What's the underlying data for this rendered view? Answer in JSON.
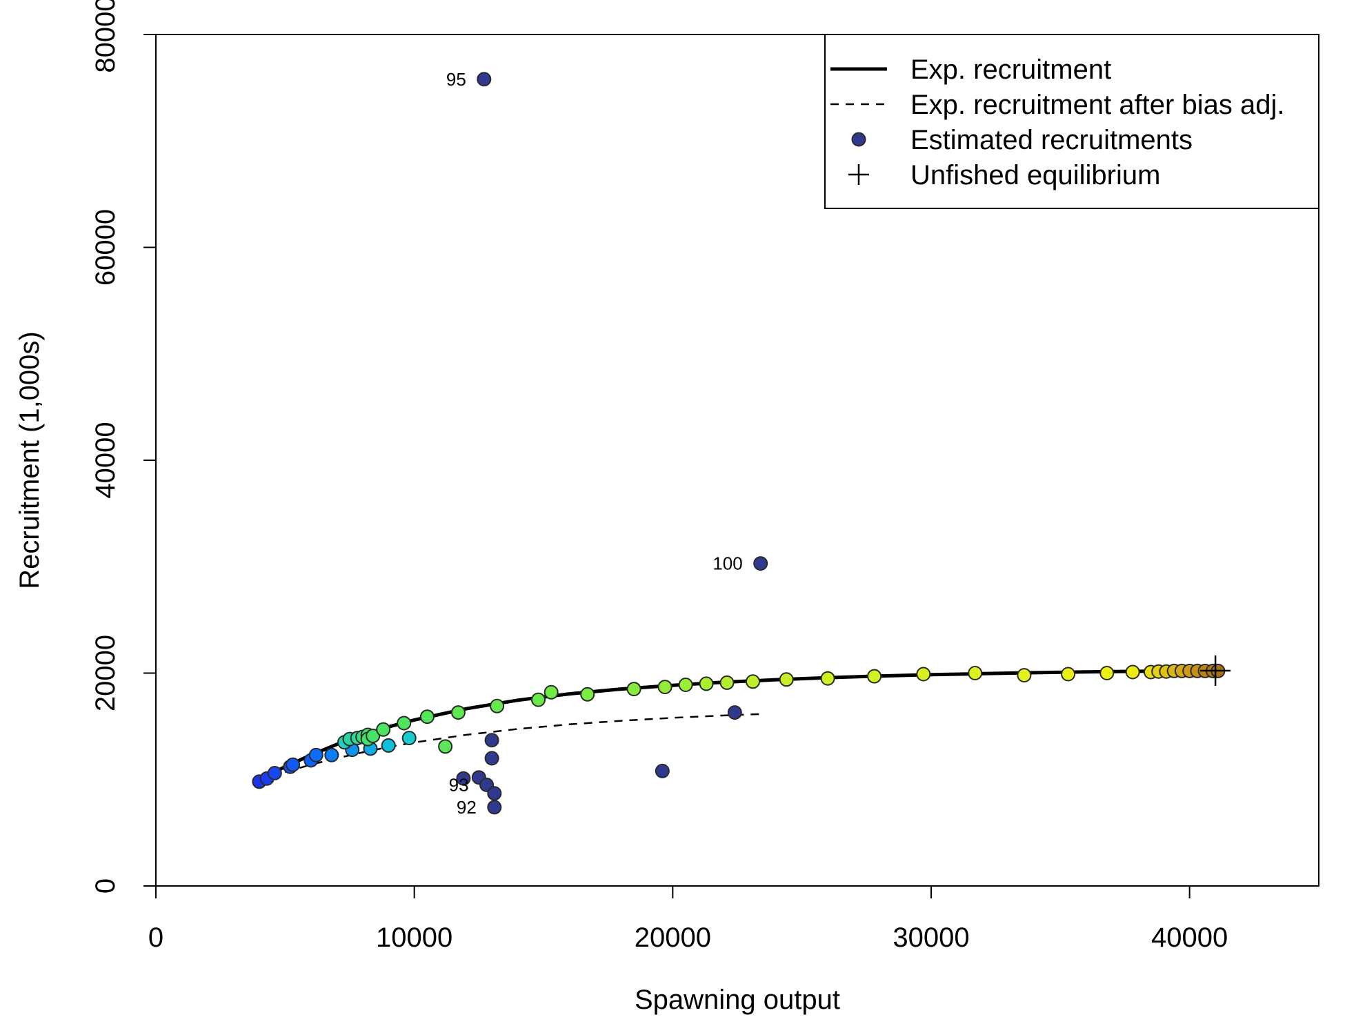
{
  "chart_data": {
    "type": "scatter",
    "xlabel": "Spawning output",
    "ylabel": "Recruitment (1,000s)",
    "xlim": [
      0,
      45000
    ],
    "ylim": [
      0,
      80000
    ],
    "x_ticks": [
      0,
      10000,
      20000,
      30000,
      40000
    ],
    "y_ticks": [
      0,
      20000,
      40000,
      60000,
      80000
    ],
    "x_tick_labels": [
      "0",
      "10000",
      "20000",
      "30000",
      "40000"
    ],
    "y_tick_labels": [
      "0",
      "20000",
      "40000",
      "60000",
      "80000"
    ],
    "legend": {
      "placement": "top-right",
      "items": [
        {
          "label": "Exp. recruitment",
          "symbol": "solid-line"
        },
        {
          "label": "Exp. recruitment after bias adj.",
          "symbol": "dashed-line"
        },
        {
          "label": "Estimated recruitments",
          "symbol": "filled-circle"
        },
        {
          "label": "Unfished equilibrium",
          "symbol": "plus"
        }
      ]
    },
    "series": [
      {
        "name": "Exp. recruitment",
        "style": "solid",
        "x": [
          4000,
          5000,
          6000,
          7000,
          8000,
          9000,
          10000,
          12000,
          14000,
          16000,
          18000,
          20000,
          22000,
          24000,
          26000,
          28000,
          30000,
          32000,
          34000,
          36000,
          38000,
          40000,
          41000
        ],
        "y": [
          10000,
          11200,
          12300,
          13300,
          14200,
          14950,
          15600,
          16650,
          17450,
          18050,
          18500,
          18850,
          19150,
          19380,
          19570,
          19720,
          19850,
          19950,
          20040,
          20110,
          20170,
          20210,
          20230
        ]
      },
      {
        "name": "Exp. recruitment after bias adj.",
        "style": "dashed",
        "x": [
          5000,
          6000,
          7000,
          8000,
          9000,
          10000,
          12000,
          14000,
          16000,
          18000,
          20000,
          22000,
          23500
        ],
        "y": [
          10700,
          11400,
          12000,
          12550,
          13050,
          13480,
          14200,
          14750,
          15180,
          15520,
          15800,
          16020,
          16160
        ]
      },
      {
        "name": "Estimated recruitments",
        "style": "points",
        "points": [
          {
            "x": 4000,
            "y": 9800
          },
          {
            "x": 4300,
            "y": 10100
          },
          {
            "x": 4600,
            "y": 10600
          },
          {
            "x": 5200,
            "y": 11200
          },
          {
            "x": 5300,
            "y": 11400
          },
          {
            "x": 6000,
            "y": 11800
          },
          {
            "x": 6200,
            "y": 12300
          },
          {
            "x": 6800,
            "y": 12300
          },
          {
            "x": 7600,
            "y": 12800
          },
          {
            "x": 8300,
            "y": 12900
          },
          {
            "x": 9000,
            "y": 13200
          },
          {
            "x": 9800,
            "y": 13900
          },
          {
            "x": 7300,
            "y": 13500
          },
          {
            "x": 7500,
            "y": 13800
          },
          {
            "x": 7800,
            "y": 13900
          },
          {
            "x": 8000,
            "y": 14000
          },
          {
            "x": 8200,
            "y": 14200
          },
          {
            "x": 8200,
            "y": 13800
          },
          {
            "x": 8400,
            "y": 14100
          },
          {
            "x": 8800,
            "y": 14700
          },
          {
            "x": 9600,
            "y": 15300
          },
          {
            "x": 10500,
            "y": 15900
          },
          {
            "x": 11200,
            "y": 13100
          },
          {
            "x": 11700,
            "y": 16300
          },
          {
            "x": 13200,
            "y": 16900
          },
          {
            "x": 14800,
            "y": 17500
          },
          {
            "x": 15300,
            "y": 18200
          },
          {
            "x": 16700,
            "y": 18000
          },
          {
            "x": 18500,
            "y": 18500
          },
          {
            "x": 19700,
            "y": 18700
          },
          {
            "x": 20500,
            "y": 18900
          },
          {
            "x": 21300,
            "y": 19000
          },
          {
            "x": 22100,
            "y": 19100
          },
          {
            "x": 23100,
            "y": 19200
          },
          {
            "x": 24400,
            "y": 19400
          },
          {
            "x": 26000,
            "y": 19500
          },
          {
            "x": 27800,
            "y": 19700
          },
          {
            "x": 29700,
            "y": 19900
          },
          {
            "x": 31700,
            "y": 20000
          },
          {
            "x": 33600,
            "y": 19800
          },
          {
            "x": 35300,
            "y": 19900
          },
          {
            "x": 36800,
            "y": 20000
          },
          {
            "x": 37800,
            "y": 20100
          },
          {
            "x": 38500,
            "y": 20100
          },
          {
            "x": 38800,
            "y": 20150
          },
          {
            "x": 39100,
            "y": 20150
          },
          {
            "x": 39400,
            "y": 20200
          },
          {
            "x": 39700,
            "y": 20200
          },
          {
            "x": 40000,
            "y": 20200
          },
          {
            "x": 40300,
            "y": 20200
          },
          {
            "x": 40600,
            "y": 20200
          },
          {
            "x": 40900,
            "y": 20200
          },
          {
            "x": 41100,
            "y": 20200
          },
          {
            "x": 11900,
            "y": 10100
          },
          {
            "x": 12500,
            "y": 10200
          },
          {
            "x": 12800,
            "y": 9500
          },
          {
            "x": 13100,
            "y": 8700
          },
          {
            "x": 13100,
            "y": 7400
          },
          {
            "x": 13000,
            "y": 12000
          },
          {
            "x": 13000,
            "y": 13700
          },
          {
            "x": 12700,
            "y": 75800
          },
          {
            "x": 19600,
            "y": 10800
          },
          {
            "x": 22400,
            "y": 16300
          },
          {
            "x": 23400,
            "y": 30300
          }
        ]
      }
    ],
    "point_labels": [
      {
        "text": "95",
        "x": 12700,
        "y": 75800
      },
      {
        "text": "100",
        "x": 23400,
        "y": 30300
      },
      {
        "text": "93",
        "x": 12800,
        "y": 9500
      },
      {
        "text": "92",
        "x": 13100,
        "y": 7400
      }
    ],
    "unfished_equilibrium": {
      "x": 41000,
      "y": 20230
    }
  }
}
